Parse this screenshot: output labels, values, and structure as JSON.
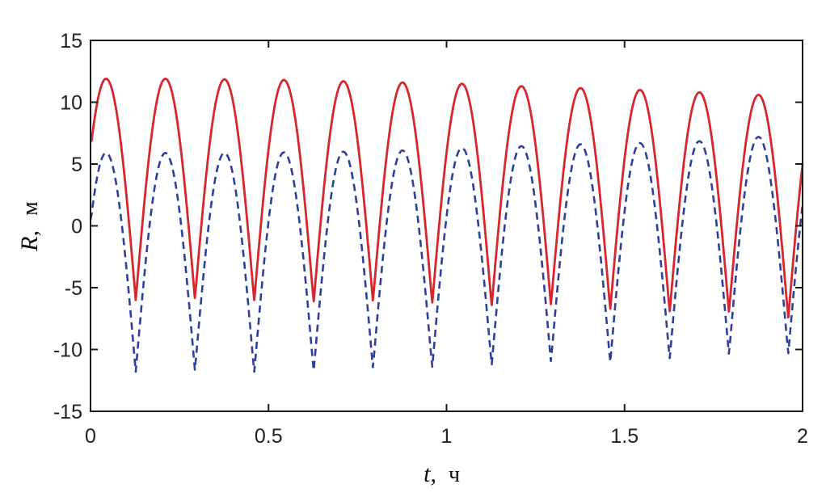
{
  "chart_data": {
    "type": "line",
    "xlabel": {
      "var": "t,",
      "unit": "ч"
    },
    "ylabel": {
      "var": "R,",
      "unit": "м"
    },
    "xlim": [
      0,
      2
    ],
    "ylim": [
      -15,
      15
    ],
    "xticks": [
      0,
      0.5,
      1,
      1.5,
      2
    ],
    "xtick_labels": [
      "0",
      "0.5",
      "1",
      "1.5",
      "2"
    ],
    "yticks": [
      -15,
      -10,
      -5,
      0,
      5,
      10,
      15
    ],
    "ytick_labels": [
      "-15",
      "-10",
      "-5",
      "0",
      "5",
      "10",
      "15"
    ],
    "grid": false,
    "legend": false,
    "series": [
      {
        "style": "solid",
        "color": "#d7262e",
        "period": 0.1665,
        "first_min": 0.127,
        "peaks": [
          {
            "t": 0.044,
            "v": 11.9
          },
          {
            "t": 0.21,
            "v": 11.9
          },
          {
            "t": 0.377,
            "v": 11.85
          },
          {
            "t": 0.543,
            "v": 11.8
          },
          {
            "t": 0.71,
            "v": 11.7
          },
          {
            "t": 0.877,
            "v": 11.6
          },
          {
            "t": 1.043,
            "v": 11.5
          },
          {
            "t": 1.21,
            "v": 11.3
          },
          {
            "t": 1.377,
            "v": 11.15
          },
          {
            "t": 1.543,
            "v": 11.0
          },
          {
            "t": 1.71,
            "v": 10.8
          },
          {
            "t": 1.877,
            "v": 10.6
          }
        ],
        "troughs": [
          {
            "t": 0.127,
            "v": -6.0
          },
          {
            "t": 0.293,
            "v": -6.0
          },
          {
            "t": 0.46,
            "v": -6.0
          },
          {
            "t": 0.627,
            "v": -6.1
          },
          {
            "t": 0.793,
            "v": -6.2
          },
          {
            "t": 0.96,
            "v": -6.2
          },
          {
            "t": 1.127,
            "v": -6.4
          },
          {
            "t": 1.293,
            "v": -6.5
          },
          {
            "t": 1.46,
            "v": -6.7
          },
          {
            "t": 1.627,
            "v": -6.9
          },
          {
            "t": 1.793,
            "v": -7.1
          },
          {
            "t": 1.96,
            "v": -7.4
          }
        ],
        "start": {
          "t": 0,
          "v": 6.8
        },
        "end": {
          "t": 2,
          "v": 5.0
        }
      },
      {
        "style": "dashed",
        "color": "#2f3f9e",
        "period": 0.1665,
        "first_min": 0.127,
        "peaks": [
          {
            "t": 0.044,
            "v": 5.9
          },
          {
            "t": 0.21,
            "v": 5.9
          },
          {
            "t": 0.377,
            "v": 5.9
          },
          {
            "t": 0.543,
            "v": 5.95
          },
          {
            "t": 0.71,
            "v": 6.0
          },
          {
            "t": 0.877,
            "v": 6.1
          },
          {
            "t": 1.043,
            "v": 6.3
          },
          {
            "t": 1.21,
            "v": 6.45
          },
          {
            "t": 1.377,
            "v": 6.6
          },
          {
            "t": 1.543,
            "v": 6.7
          },
          {
            "t": 1.71,
            "v": 6.85
          },
          {
            "t": 1.877,
            "v": 7.2
          }
        ],
        "troughs": [
          {
            "t": 0.127,
            "v": -11.8
          },
          {
            "t": 0.293,
            "v": -11.8
          },
          {
            "t": 0.46,
            "v": -11.8
          },
          {
            "t": 0.627,
            "v": -11.7
          },
          {
            "t": 0.793,
            "v": -11.6
          },
          {
            "t": 0.96,
            "v": -11.4
          },
          {
            "t": 1.127,
            "v": -11.2
          },
          {
            "t": 1.293,
            "v": -11.1
          },
          {
            "t": 1.46,
            "v": -11.0
          },
          {
            "t": 1.627,
            "v": -10.7
          },
          {
            "t": 1.793,
            "v": -10.5
          },
          {
            "t": 1.96,
            "v": -10.3
          }
        ],
        "start": {
          "t": 0,
          "v": 0.5
        },
        "end": {
          "t": 2,
          "v": 2.0
        }
      }
    ]
  }
}
